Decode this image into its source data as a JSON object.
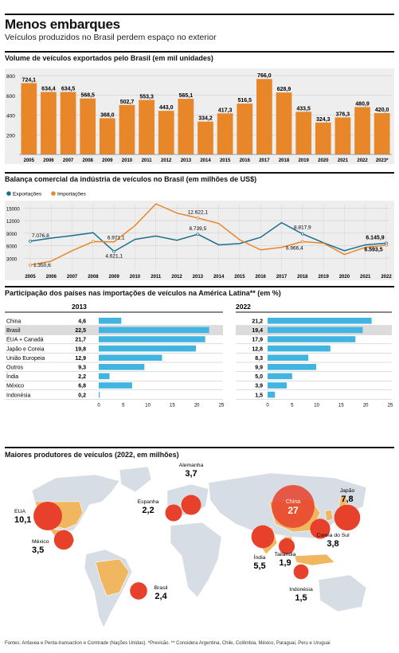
{
  "header": {
    "title": "Menos embarques",
    "subtitle": "Veículos produzidos no Brasil perdem espaço no exterior"
  },
  "colors": {
    "orange": "#e8862a",
    "blue": "#1a6f8f",
    "bar_blue": "#42b4e0",
    "red": "#e8412b",
    "map_land": "#d6dde4",
    "map_highlight": "#f1b660"
  },
  "chart_data": [
    {
      "id": "exports",
      "type": "bar",
      "title": "Volume de veículos exportados pelo Brasil (em mil unidades)",
      "categories": [
        "2005",
        "2006",
        "2007",
        "2008",
        "2009",
        "2010",
        "2011",
        "2012",
        "2013",
        "2014",
        "2015",
        "2016",
        "2017",
        "2018",
        "2019",
        "2020",
        "2021",
        "2022",
        "2023*"
      ],
      "values": [
        724.1,
        634.4,
        634.5,
        568.5,
        368.0,
        502.7,
        553.3,
        443.0,
        565.1,
        334.2,
        417.3,
        516.5,
        766.0,
        628.9,
        433.5,
        324.3,
        376.3,
        480.9,
        420.0
      ],
      "value_labels": [
        "724,1",
        "634,4",
        "634,5",
        "568,5",
        "368,0",
        "502,7",
        "553,3",
        "443,0",
        "565,1",
        "334,2",
        "417,3",
        "516,5",
        "766,0",
        "628,9",
        "433,5",
        "324,3",
        "376,3",
        "480,9",
        "420,0"
      ],
      "yticks": [
        "800",
        "600",
        "400",
        "200"
      ],
      "ytick_values": [
        800,
        600,
        400,
        200
      ],
      "ylim": [
        0,
        800
      ]
    },
    {
      "id": "balance",
      "type": "line",
      "title": "Balança comercial da indústria de veículos no Brasil (em milhões de US$)",
      "legend": [
        "Exportações",
        "Importações"
      ],
      "x": [
        "2005",
        "2006",
        "2007",
        "2008",
        "2009",
        "2010",
        "2011",
        "2012",
        "2013",
        "2014",
        "2015",
        "2016",
        "2017",
        "2018",
        "2019",
        "2020",
        "2021",
        "2022"
      ],
      "series": [
        {
          "name": "Exportações",
          "values": [
            7076.8,
            7800,
            8400,
            9100,
            4621.1,
            7500,
            8300,
            7300,
            8739.5,
            6200,
            6500,
            8000,
            11500,
            8817.9,
            6700,
            4800,
            6200,
            6593.5
          ]
        },
        {
          "name": "Importações",
          "values": [
            1350.6,
            2300,
            4800,
            6971.1,
            6900,
            10800,
            16000,
            13800,
            12622.1,
            11300,
            7400,
            5000,
            5600,
            6966.4,
            6600,
            3900,
            5600,
            6145.9
          ]
        }
      ],
      "annotations": [
        "7.076,8",
        "1.350,6",
        "6.971,1",
        "4.621,1",
        "12.622,1",
        "8.739,5",
        "8.817,9",
        "6.966,4",
        "6.145,9",
        "6.593,5"
      ],
      "yticks": [
        "15000",
        "12000",
        "9000",
        "6000",
        "3000",
        "0"
      ],
      "ytick_values": [
        15000,
        12000,
        9000,
        6000,
        3000,
        0
      ],
      "ylim": [
        0,
        16000
      ]
    },
    {
      "id": "share",
      "type": "bar",
      "title": "Participação dos países nas importações de veículos na América Latina** (em %)",
      "categories": [
        "China",
        "Brasil",
        "EUA + Canadá",
        "Japão e Coreia",
        "União Europeia",
        "Outros",
        "Índia",
        "México",
        "Indonésia"
      ],
      "series": [
        {
          "name": "2013",
          "values": [
            4.6,
            22.5,
            21.7,
            19.8,
            12.9,
            9.3,
            2.2,
            6.8,
            0.2
          ],
          "labels": [
            "4,6",
            "22,5",
            "21,7",
            "19,8",
            "12,9",
            "9,3",
            "2,2",
            "6,8",
            "0,2"
          ]
        },
        {
          "name": "2022",
          "values": [
            21.2,
            19.4,
            17.9,
            12.8,
            8.3,
            9.9,
            5.0,
            3.9,
            1.5
          ],
          "labels": [
            "21,2",
            "19,4",
            "17,9",
            "12,8",
            "8,3",
            "9,9",
            "5,0",
            "3,9",
            "1,5"
          ]
        }
      ],
      "xticks": [
        "0",
        "5",
        "10",
        "15",
        "20",
        "25"
      ],
      "xtick_values": [
        0,
        5,
        10,
        15,
        20,
        25
      ],
      "xlim": [
        0,
        25
      ]
    },
    {
      "id": "producers",
      "type": "scatter",
      "title": "Maiores produtores de veículos (2022, em milhões)",
      "points": [
        {
          "name": "EUA",
          "value": "10,1",
          "v": 10.1
        },
        {
          "name": "México",
          "value": "3,5",
          "v": 3.5
        },
        {
          "name": "Alemanha",
          "value": "3,7",
          "v": 3.7
        },
        {
          "name": "Espanha",
          "value": "2,2",
          "v": 2.2
        },
        {
          "name": "Brasil",
          "value": "2,4",
          "v": 2.4
        },
        {
          "name": "China",
          "value": "27",
          "v": 27
        },
        {
          "name": "Japão",
          "value": "7,8",
          "v": 7.8
        },
        {
          "name": "Coreia do Sul",
          "value": "3,8",
          "v": 3.8
        },
        {
          "name": "Índia",
          "value": "5,5",
          "v": 5.5
        },
        {
          "name": "Tailândia",
          "value": "1,9",
          "v": 1.9
        },
        {
          "name": "Indonésia",
          "value": "1,5",
          "v": 1.5
        }
      ]
    }
  ],
  "footer": "Fontes: Anfavea e Penta-transaction e Comtrade (Nações Unidas). *Previsão. ** Considera Argentina, Chile, Colômbia, México, Paraguai, Peru e Uruguai"
}
